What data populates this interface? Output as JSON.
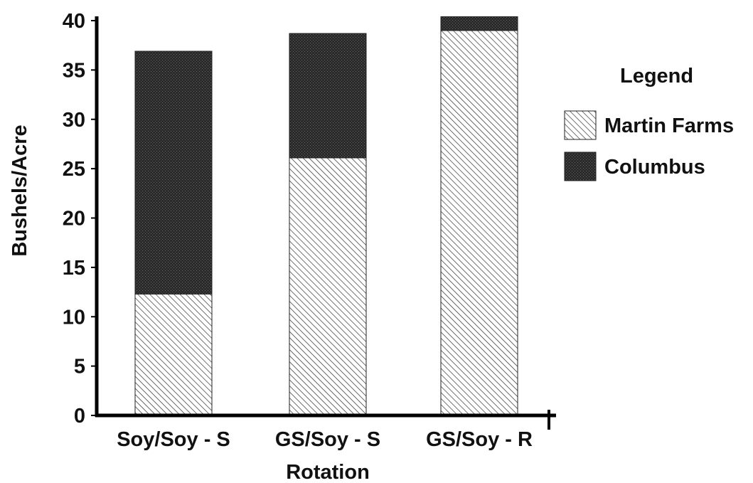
{
  "chart_data": {
    "type": "bar",
    "stacked": true,
    "categories": [
      "Soy/Soy - S",
      "GS/Soy - S",
      "GS/Soy - R"
    ],
    "series": [
      {
        "name": "Martin Farms",
        "values": [
          12.3,
          26.1,
          39.0
        ],
        "pattern": "hatch"
      },
      {
        "name": "Columbus",
        "values": [
          24.6,
          12.6,
          1.4
        ],
        "pattern": "dark-stipple"
      }
    ],
    "title": "",
    "xlabel": "Rotation",
    "ylabel": "Bushels/Acre",
    "ylim": [
      0,
      40
    ],
    "yticks": [
      0,
      5,
      10,
      15,
      20,
      25,
      30,
      35,
      40
    ],
    "grid": false,
    "legend": {
      "title": "Legend",
      "position": "right"
    },
    "colors": {
      "hatch_line": "#222222",
      "dark_fill": "#2b2b2b",
      "axis": "#000000"
    }
  }
}
